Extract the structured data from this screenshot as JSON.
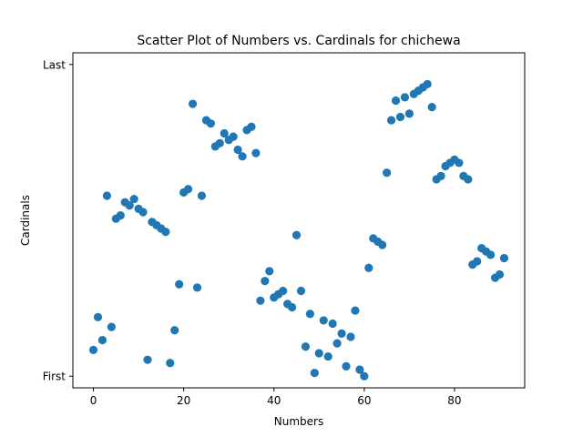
{
  "chart_data": {
    "type": "scatter",
    "title": "Scatter Plot of Numbers vs. Cardinals for chichewa",
    "xlabel": "Numbers",
    "ylabel": "Cardinals",
    "xlim": [
      -4.55,
      95.55
    ],
    "ylim": [
      -3.55,
      98.55
    ],
    "x_ticks": [
      0,
      20,
      40,
      60,
      80
    ],
    "y_ticks": [
      {
        "value": 0,
        "label": "First"
      },
      {
        "value": 95,
        "label": "Last"
      }
    ],
    "marker_color": "#1f77b4",
    "grid": false,
    "x": [
      0,
      1,
      2,
      3,
      4,
      5,
      6,
      7,
      8,
      9,
      10,
      11,
      12,
      13,
      14,
      15,
      16,
      17,
      18,
      19,
      20,
      21,
      22,
      23,
      24,
      25,
      26,
      27,
      28,
      29,
      30,
      31,
      32,
      33,
      34,
      35,
      36,
      37,
      38,
      39,
      40,
      41,
      42,
      43,
      44,
      45,
      46,
      47,
      48,
      49,
      50,
      51,
      52,
      53,
      54,
      55,
      56,
      57,
      58,
      59,
      60,
      61,
      62,
      63,
      64,
      65,
      66,
      67,
      68,
      69,
      70,
      71,
      72,
      73,
      74,
      75,
      76,
      77,
      78,
      79,
      80,
      81,
      82,
      83,
      84,
      85,
      86,
      87,
      88,
      89,
      90,
      91
    ],
    "y": [
      8,
      18,
      11,
      55,
      15,
      48,
      49,
      53,
      52,
      54,
      51,
      50,
      5,
      47,
      46,
      45,
      44,
      4,
      14,
      28,
      56,
      57,
      83,
      27,
      55,
      78,
      77,
      70,
      71,
      74,
      72,
      73,
      69,
      67,
      75,
      76,
      68,
      23,
      29,
      32,
      24,
      25,
      26,
      22,
      21,
      43,
      26,
      9,
      19,
      1,
      7,
      17,
      6,
      16,
      10,
      13,
      3,
      12,
      20,
      2,
      0,
      33,
      42,
      41,
      40,
      62,
      78,
      84,
      79,
      85,
      80,
      86,
      87,
      88,
      89,
      82,
      60,
      61,
      64,
      65,
      66,
      65,
      61,
      60,
      34,
      35,
      39,
      38,
      37,
      30,
      31,
      36
    ]
  }
}
